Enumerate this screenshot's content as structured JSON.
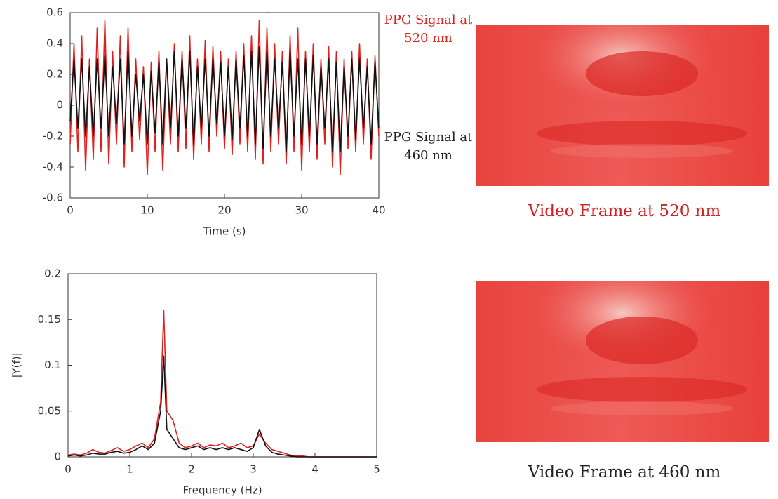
{
  "chart_data": [
    {
      "type": "line",
      "xlabel": "Time  (s)",
      "xlim": [
        0,
        40
      ],
      "xticks": [
        0,
        10,
        20,
        30,
        40
      ],
      "ylim": [
        -0.6,
        0.6
      ],
      "yticks": [
        -0.6,
        -0.4,
        -0.2,
        0,
        0.2,
        0.4,
        0.6
      ],
      "x": [
        0,
        0.5,
        1,
        1.5,
        2,
        2.5,
        3,
        3.5,
        4,
        4.5,
        5,
        5.5,
        6,
        6.5,
        7,
        7.5,
        8,
        8.5,
        9,
        9.5,
        10,
        10.5,
        11,
        11.5,
        12,
        12.5,
        13,
        13.5,
        14,
        14.5,
        15,
        15.5,
        16,
        16.5,
        17,
        17.5,
        18,
        18.5,
        19,
        19.5,
        20,
        20.5,
        21,
        21.5,
        22,
        22.5,
        23,
        23.5,
        24,
        24.5,
        25,
        25.5,
        26,
        26.5,
        27,
        27.5,
        28,
        28.5,
        29,
        29.5,
        30,
        30.5,
        31,
        31.5,
        32,
        32.5,
        33,
        33.5,
        34,
        34.5,
        35,
        35.5,
        36,
        36.5,
        37,
        37.5,
        38,
        38.5,
        39,
        39.5,
        40
      ],
      "series": [
        {
          "name": "PPG Signal at 520 nm",
          "color": "#e0201c",
          "values": [
            -0.25,
            0.4,
            -0.3,
            0.45,
            -0.42,
            0.3,
            -0.35,
            0.5,
            -0.3,
            0.55,
            -0.38,
            0.35,
            -0.25,
            0.45,
            -0.4,
            0.5,
            -0.3,
            0.3,
            -0.22,
            0.25,
            -0.45,
            0.28,
            -0.3,
            0.35,
            -0.42,
            0.3,
            -0.25,
            0.4,
            -0.3,
            0.35,
            -0.28,
            0.45,
            -0.35,
            0.3,
            -0.25,
            0.42,
            -0.3,
            0.38,
            -0.2,
            0.35,
            -0.28,
            0.3,
            -0.32,
            0.35,
            -0.25,
            0.4,
            -0.3,
            0.45,
            -0.35,
            0.55,
            -0.38,
            0.5,
            -0.3,
            0.4,
            -0.25,
            0.35,
            -0.38,
            0.45,
            -0.3,
            0.5,
            -0.42,
            0.35,
            -0.3,
            0.4,
            -0.35,
            0.3,
            -0.25,
            0.38,
            -0.4,
            0.35,
            -0.45,
            0.3,
            -0.28,
            0.35,
            -0.3,
            0.4,
            -0.25,
            0.3,
            -0.35,
            0.32,
            -0.2
          ]
        },
        {
          "name": "PPG Signal at 460 nm",
          "color": "#111111",
          "values": [
            -0.1,
            0.3,
            -0.15,
            0.3,
            -0.2,
            0.25,
            -0.2,
            0.3,
            -0.15,
            0.32,
            -0.2,
            0.25,
            -0.12,
            0.3,
            -0.25,
            0.35,
            -0.2,
            0.2,
            -0.1,
            0.2,
            -0.25,
            0.22,
            -0.18,
            0.28,
            -0.25,
            0.3,
            -0.15,
            0.35,
            -0.2,
            0.3,
            -0.15,
            0.35,
            -0.25,
            0.25,
            -0.15,
            0.3,
            -0.2,
            0.3,
            -0.12,
            0.28,
            -0.2,
            0.25,
            -0.22,
            0.3,
            -0.15,
            0.32,
            -0.2,
            0.35,
            -0.25,
            0.38,
            -0.28,
            0.35,
            -0.2,
            0.3,
            -0.15,
            0.28,
            -0.3,
            0.35,
            -0.2,
            0.3,
            -0.25,
            0.3,
            -0.2,
            0.32,
            -0.25,
            0.25,
            -0.15,
            0.3,
            -0.3,
            0.28,
            -0.3,
            0.25,
            -0.2,
            0.3,
            -0.22,
            0.3,
            -0.15,
            0.25,
            -0.25,
            0.28,
            -0.15
          ]
        }
      ]
    },
    {
      "type": "line",
      "xlabel": "Frequency (Hz)",
      "ylabel": "|Y(f)|",
      "xlim": [
        0,
        5
      ],
      "xticks": [
        0,
        1,
        2,
        3,
        4,
        5
      ],
      "ylim": [
        0,
        0.2
      ],
      "yticks": [
        0,
        0.05,
        0.1,
        0.15,
        0.2
      ],
      "x": [
        0,
        0.1,
        0.2,
        0.3,
        0.4,
        0.5,
        0.6,
        0.7,
        0.8,
        0.9,
        1,
        1.1,
        1.2,
        1.3,
        1.4,
        1.5,
        1.55,
        1.6,
        1.7,
        1.8,
        1.9,
        2,
        2.1,
        2.2,
        2.3,
        2.4,
        2.5,
        2.6,
        2.7,
        2.8,
        2.9,
        3,
        3.1,
        3.2,
        3.3,
        3.4,
        3.5,
        3.6,
        3.7,
        3.8,
        3.9,
        4,
        4.1,
        4.2,
        4.3,
        4.4,
        4.5,
        4.6,
        4.7,
        4.8,
        4.9,
        5
      ],
      "series": [
        {
          "color": "#e0201c",
          "values": [
            0.002,
            0.003,
            0.002,
            0.004,
            0.008,
            0.005,
            0.004,
            0.007,
            0.01,
            0.006,
            0.008,
            0.012,
            0.015,
            0.01,
            0.02,
            0.06,
            0.16,
            0.05,
            0.04,
            0.015,
            0.01,
            0.012,
            0.015,
            0.01,
            0.013,
            0.012,
            0.015,
            0.01,
            0.012,
            0.015,
            0.01,
            0.012,
            0.025,
            0.015,
            0.008,
            0.006,
            0.004,
            0.002,
            0.001,
            0.001,
            0,
            0,
            0,
            0,
            0,
            0,
            0,
            0,
            0,
            0,
            0,
            0
          ]
        },
        {
          "color": "#111111",
          "values": [
            0.001,
            0.002,
            0.001,
            0.002,
            0.004,
            0.003,
            0.003,
            0.005,
            0.006,
            0.004,
            0.005,
            0.008,
            0.012,
            0.008,
            0.015,
            0.05,
            0.11,
            0.03,
            0.02,
            0.01,
            0.008,
            0.01,
            0.012,
            0.008,
            0.01,
            0.008,
            0.01,
            0.008,
            0.01,
            0.008,
            0.006,
            0.01,
            0.03,
            0.012,
            0.005,
            0.003,
            0.002,
            0.001,
            0,
            0,
            0,
            0,
            0,
            0,
            0,
            0,
            0,
            0,
            0,
            0,
            0,
            0
          ]
        }
      ]
    }
  ],
  "images": [
    {
      "caption": "Video Frame at 520 nm",
      "caption_color": "#d42020"
    },
    {
      "caption": "Video Frame at 460 nm",
      "caption_color": "#222222"
    }
  ]
}
